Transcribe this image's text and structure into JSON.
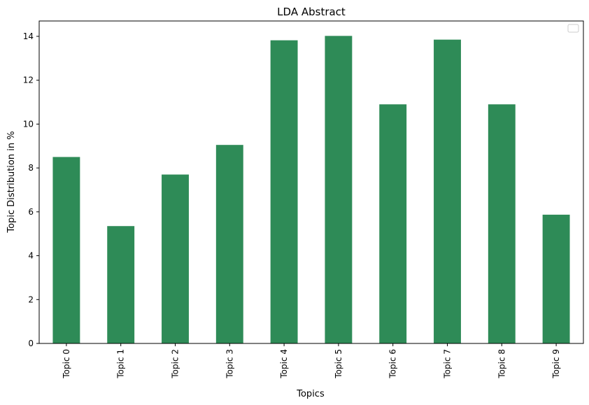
{
  "chart_data": {
    "type": "bar",
    "title": "LDA Abstract",
    "xlabel": "Topics",
    "ylabel": "Topic Distribution in %",
    "categories": [
      "Topic 0",
      "Topic 1",
      "Topic 2",
      "Topic 3",
      "Topic 4",
      "Topic 5",
      "Topic 6",
      "Topic 7",
      "Topic 8",
      "Topic 9"
    ],
    "values": [
      8.5,
      5.35,
      7.7,
      9.05,
      13.82,
      14.02,
      10.9,
      13.85,
      10.9,
      5.87
    ],
    "ylim": [
      0,
      14.7
    ],
    "yticks": [
      0,
      2,
      4,
      6,
      8,
      10,
      12,
      14
    ],
    "grid": false,
    "legend": "top-right",
    "bar_color": "#2e8b57"
  }
}
